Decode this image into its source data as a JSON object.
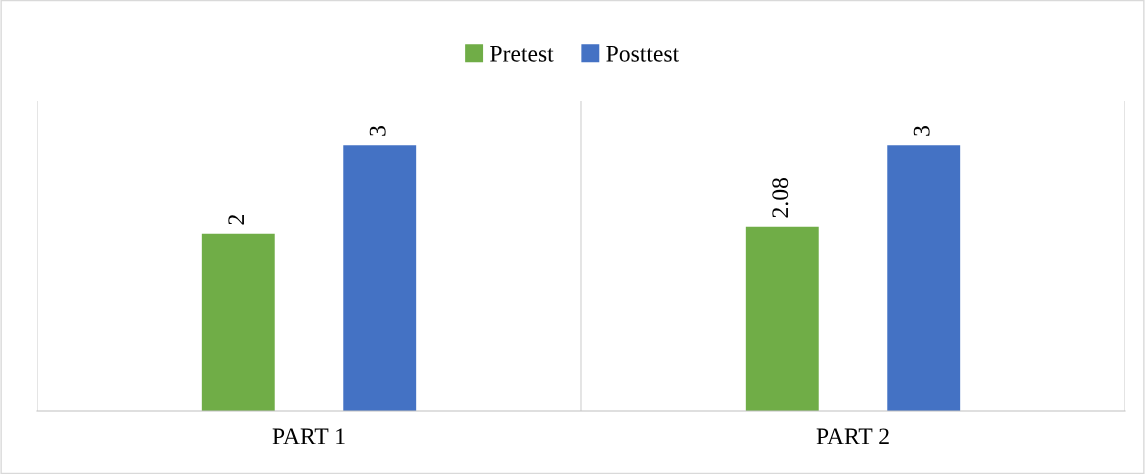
{
  "chart_data": {
    "type": "bar",
    "categories": [
      "PART 1",
      "PART 2"
    ],
    "series": [
      {
        "name": "Pretest",
        "color": "#70ad47",
        "values": [
          2,
          2.08
        ]
      },
      {
        "name": "Posttest",
        "color": "#4472c4",
        "values": [
          3,
          3
        ]
      }
    ],
    "ylim": [
      0,
      3.5
    ],
    "tick_labels": "x",
    "data_labels": true,
    "grid": "x",
    "legend": "top"
  }
}
